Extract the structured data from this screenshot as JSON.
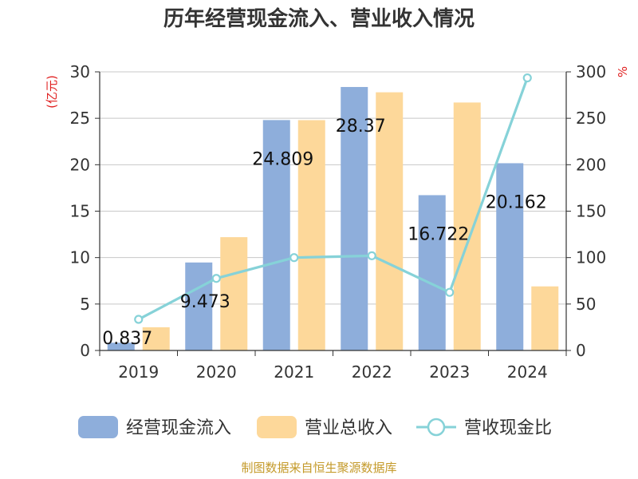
{
  "chart_data": {
    "type": "bar",
    "title": "历年经营现金流入、营业收入情况",
    "categories": [
      "2019",
      "2020",
      "2021",
      "2022",
      "2023",
      "2024"
    ],
    "left_axis": {
      "unit": "(亿元)",
      "ylim": [
        0,
        30
      ],
      "ticks": [
        0,
        5,
        10,
        15,
        20,
        25,
        30
      ]
    },
    "right_axis": {
      "unit": "%",
      "ylim": [
        0,
        300
      ],
      "ticks": [
        0,
        50,
        100,
        150,
        200,
        250,
        300
      ]
    },
    "series": [
      {
        "name": "经营现金流入",
        "type": "bar",
        "axis": "left",
        "color": "#8eaedb",
        "values": [
          0.837,
          9.473,
          24.809,
          28.37,
          16.722,
          20.162
        ],
        "labels": [
          "0.837",
          "9.473",
          "24.809",
          "28.37",
          "16.722",
          "20.162"
        ]
      },
      {
        "name": "营业总收入",
        "type": "bar",
        "axis": "left",
        "color": "#fdd89a",
        "values": [
          2.5,
          12.2,
          24.8,
          27.8,
          26.7,
          6.9
        ]
      },
      {
        "name": "营收现金比",
        "type": "line",
        "axis": "right",
        "color": "#86d2d8",
        "values": [
          33.5,
          77.6,
          100.0,
          102.0,
          62.6,
          293.5
        ]
      }
    ],
    "grid": true,
    "legend_position": "bottom"
  },
  "footer": {
    "source": "制图数据来自恒生聚源数据库"
  }
}
